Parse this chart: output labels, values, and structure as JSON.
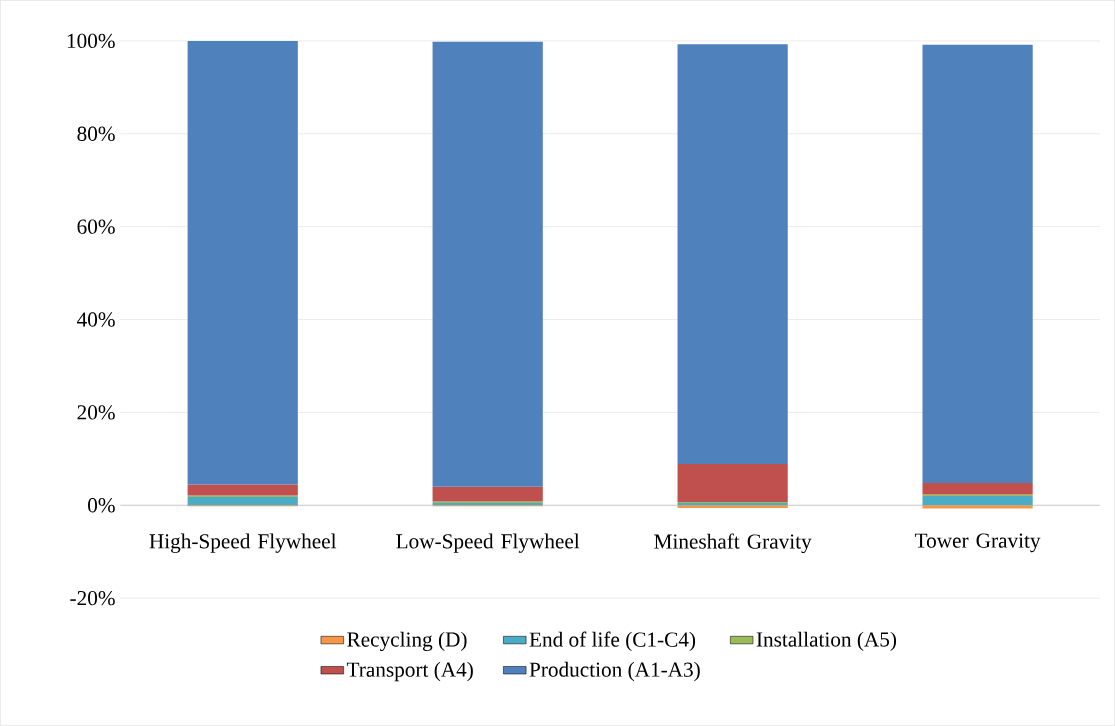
{
  "chart_data": {
    "type": "bar",
    "stacked": true,
    "categories": [
      "High-Speed Flywheel",
      "Low-Speed Flywheel",
      "Mineshaft Gravity",
      "Tower Gravity"
    ],
    "series": [
      {
        "name": "Recycling (D)",
        "color": "#f79646",
        "values": [
          -0.2,
          -0.2,
          -0.6,
          -0.7
        ]
      },
      {
        "name": "End of life (C1-C4)",
        "color": "#4bacc6",
        "values": [
          1.8,
          0.5,
          0.5,
          2.0
        ]
      },
      {
        "name": "Installation (A5)",
        "color": "#9bbb59",
        "values": [
          0.3,
          0.3,
          0.2,
          0.3
        ]
      },
      {
        "name": "Transport (A4)",
        "color": "#c0504d",
        "values": [
          2.4,
          3.2,
          8.2,
          2.5
        ]
      },
      {
        "name": "Production (A1-A3)",
        "color": "#4f81bd",
        "values": [
          95.5,
          95.8,
          90.4,
          94.4
        ]
      }
    ],
    "ylim": [
      -20,
      100
    ],
    "yticks": [
      {
        "value": -20,
        "label": "-20%"
      },
      {
        "value": 0,
        "label": "0%"
      },
      {
        "value": 20,
        "label": "20%"
      },
      {
        "value": 40,
        "label": "40%"
      },
      {
        "value": 60,
        "label": "60%"
      },
      {
        "value": 80,
        "label": "80%"
      },
      {
        "value": 100,
        "label": "100%"
      }
    ],
    "grid": "y",
    "legend": "bottom"
  }
}
